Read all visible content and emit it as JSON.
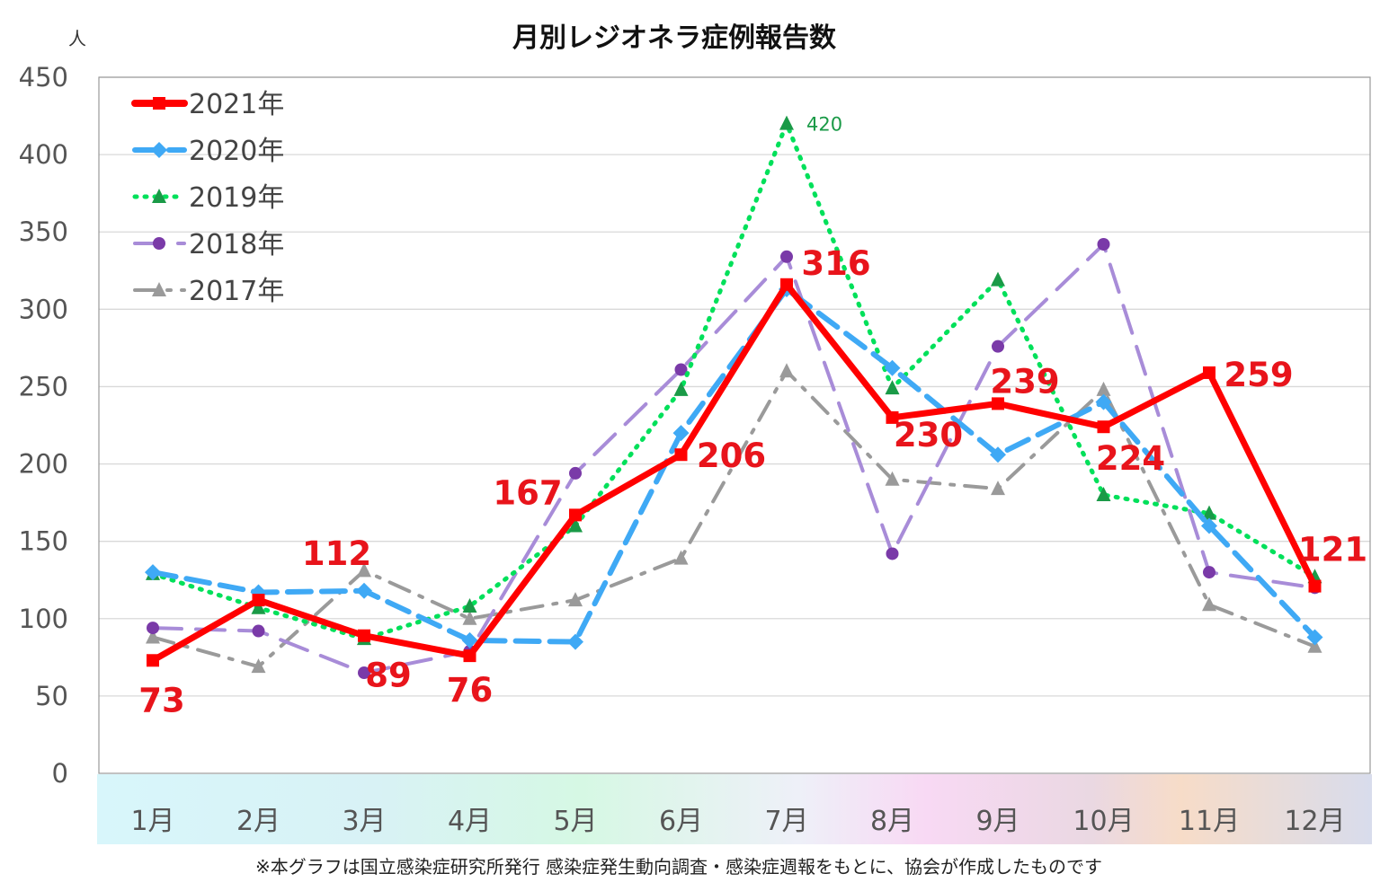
{
  "chart_data": {
    "type": "line",
    "title": "月別レジオネラ症例報告数",
    "unit_label": "人",
    "ylim": [
      0,
      450
    ],
    "yticks": [
      0,
      50,
      100,
      150,
      200,
      250,
      300,
      350,
      400,
      450
    ],
    "categories": [
      "1月",
      "2月",
      "3月",
      "4月",
      "5月",
      "6月",
      "7月",
      "8月",
      "9月",
      "10月",
      "11月",
      "12月"
    ],
    "grid": true,
    "legend_position": "top-left",
    "series": [
      {
        "name": "2021年",
        "color": "#ff0000",
        "line": "solid",
        "marker": "square",
        "values": [
          73,
          112,
          89,
          76,
          167,
          206,
          316,
          230,
          239,
          224,
          259,
          121
        ]
      },
      {
        "name": "2020年",
        "color": "#3fa9f5",
        "line": "dashed",
        "marker": "diamond",
        "values": [
          130,
          117,
          118,
          86,
          85,
          220,
          313,
          262,
          206,
          240,
          160,
          88
        ]
      },
      {
        "name": "2019年",
        "color": "#00e05a",
        "marker_color": "#1a9a47",
        "line": "dotted",
        "marker": "triangle",
        "values": [
          129,
          107,
          87,
          108,
          160,
          248,
          420,
          249,
          319,
          180,
          168,
          127
        ]
      },
      {
        "name": "2018年",
        "color": "#a88cd8",
        "marker_color": "#7a3aa8",
        "line": "long-dash",
        "marker": "circle",
        "values": [
          94,
          92,
          65,
          79,
          194,
          261,
          334,
          142,
          276,
          342,
          130,
          120
        ]
      },
      {
        "name": "2017年",
        "color": "#9a9a9a",
        "line": "dash-dot",
        "marker": "triangle",
        "values": [
          88,
          69,
          131,
          100,
          112,
          139,
          260,
          190,
          184,
          248,
          109,
          82
        ]
      }
    ],
    "data_labels": [
      "73",
      "112",
      "89",
      "76",
      "167",
      "206",
      "316",
      "230",
      "239",
      "224",
      "259",
      "121"
    ],
    "annotation": "420",
    "footnote": "※本グラフは国立感染症研究所発行 感染症発生動向調査・感染症週報をもとに、協会が作成したものです"
  }
}
